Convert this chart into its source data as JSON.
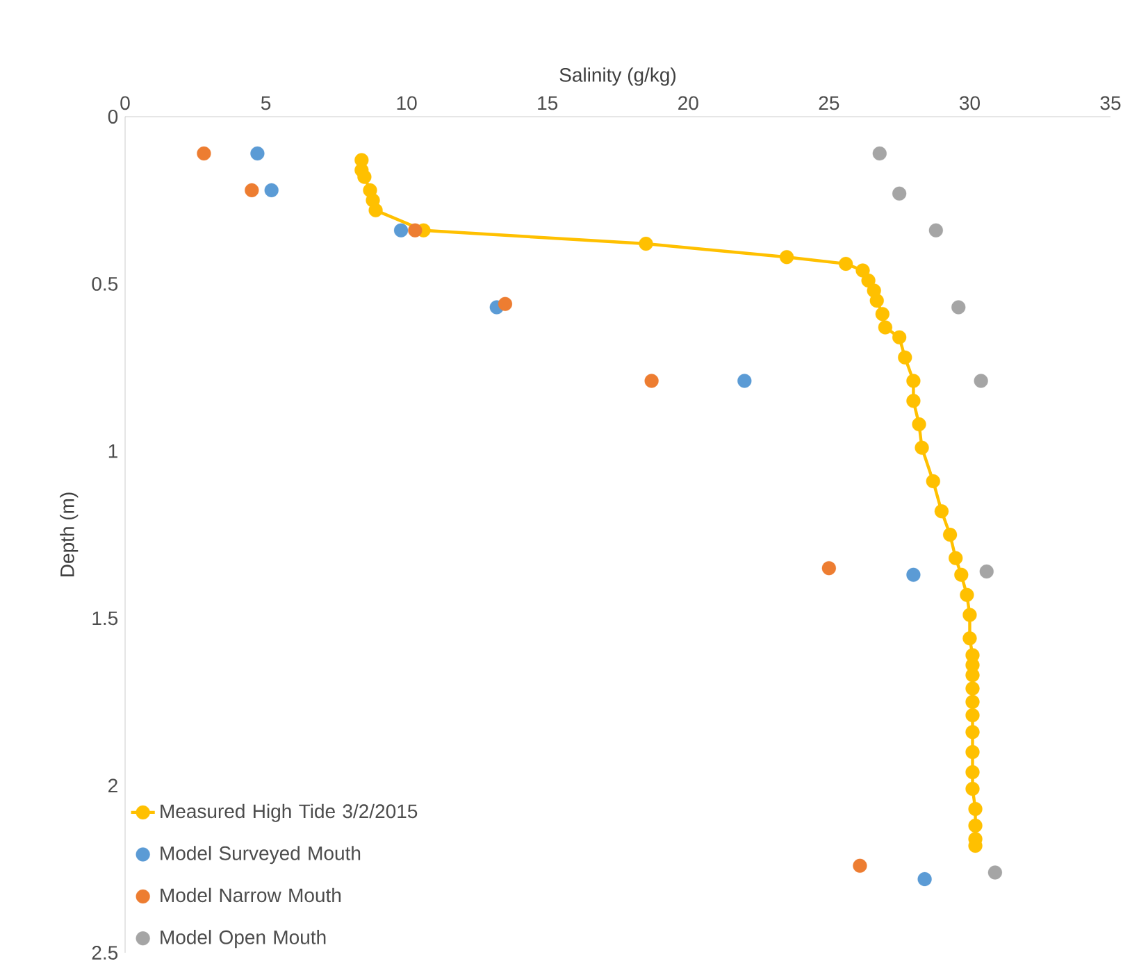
{
  "chart_data": {
    "type": "scatter",
    "xlabel": "Salinity (g/kg)",
    "ylabel": "Depth (m)",
    "xlim": [
      0,
      35
    ],
    "xticks": [
      0,
      5,
      10,
      15,
      20,
      25,
      30,
      35
    ],
    "ylim": [
      2.5,
      0
    ],
    "yticks": [
      0,
      0.5,
      1,
      1.5,
      2,
      2.5
    ],
    "grid": false,
    "legend": "bottom left",
    "marker": "circle",
    "series": [
      {
        "name": "Measured High Tide 3/2/2015",
        "type": "line",
        "color": "#ffc000",
        "x": [
          8.4,
          8.4,
          8.5,
          8.7,
          8.8,
          8.9,
          10.6,
          18.5,
          23.5,
          25.6,
          26.2,
          26.4,
          26.6,
          26.7,
          26.9,
          27.0,
          27.5,
          27.7,
          28.0,
          28.0,
          28.2,
          28.3,
          28.7,
          29.0,
          29.3,
          29.5,
          29.7,
          29.9,
          30.0,
          30.0,
          30.1,
          30.1,
          30.1,
          30.1,
          30.1,
          30.1,
          30.1,
          30.1,
          30.1,
          30.1,
          30.2,
          30.2,
          30.2,
          30.2
        ],
        "values": [
          0.13,
          0.16,
          0.18,
          0.22,
          0.25,
          0.28,
          0.34,
          0.38,
          0.42,
          0.44,
          0.46,
          0.49,
          0.52,
          0.55,
          0.59,
          0.63,
          0.66,
          0.72,
          0.79,
          0.85,
          0.92,
          0.99,
          1.09,
          1.18,
          1.25,
          1.32,
          1.37,
          1.43,
          1.49,
          1.56,
          1.61,
          1.64,
          1.67,
          1.71,
          1.75,
          1.79,
          1.84,
          1.9,
          1.96,
          2.01,
          2.07,
          2.12,
          2.16,
          2.18
        ]
      },
      {
        "name": "Model Surveyed Mouth",
        "color": "#5b9bd5",
        "x": [
          4.7,
          5.2,
          9.8,
          13.2,
          22.0,
          28.0,
          28.4
        ],
        "values": [
          0.11,
          0.22,
          0.34,
          0.57,
          0.79,
          1.37,
          2.28
        ]
      },
      {
        "name": "Model Narrow Mouth",
        "color": "#ed7d31",
        "x": [
          2.8,
          4.5,
          10.3,
          13.5,
          18.7,
          25.0,
          26.1
        ],
        "values": [
          0.11,
          0.22,
          0.34,
          0.56,
          0.79,
          1.35,
          2.24
        ]
      },
      {
        "name": "Model Open Mouth",
        "color": "#a5a5a5",
        "x": [
          26.8,
          27.5,
          28.8,
          29.6,
          30.4,
          30.6,
          30.9
        ],
        "values": [
          0.11,
          0.23,
          0.34,
          0.57,
          0.79,
          1.36,
          2.26
        ]
      }
    ]
  }
}
